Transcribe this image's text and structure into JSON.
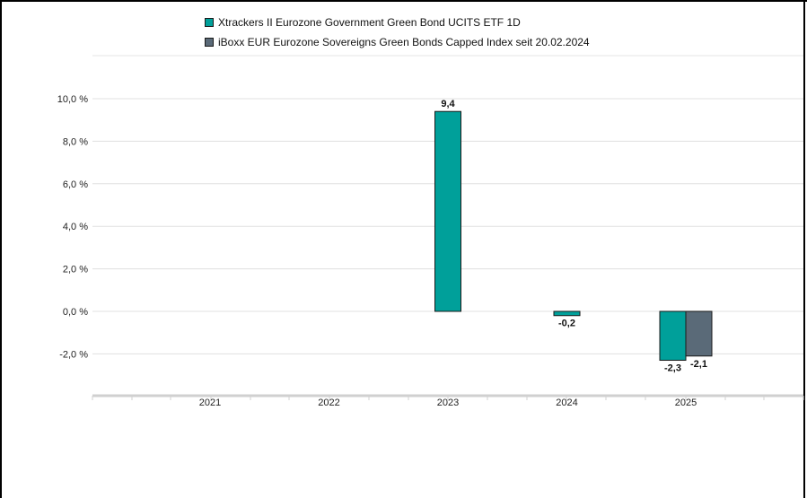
{
  "chart_data": {
    "type": "bar",
    "categories": [
      "2021",
      "2022",
      "2023",
      "2024",
      "2025"
    ],
    "series": [
      {
        "name": "Xtrackers II Eurozone Government Green Bond UCITS ETF 1D",
        "color": "#00a09a",
        "values": [
          null,
          null,
          9.4,
          -0.2,
          -2.3
        ],
        "labels": [
          "",
          "",
          "9,4",
          "-0,2",
          "-2,3"
        ]
      },
      {
        "name": "iBoxx EUR Eurozone Sovereigns Green Bonds Capped Index seit 20.02.2024",
        "color": "#5a6a78",
        "values": [
          null,
          null,
          null,
          null,
          -2.1
        ],
        "labels": [
          "",
          "",
          "",
          "",
          "-2,1"
        ]
      }
    ],
    "yticks": [
      10,
      8,
      6,
      4,
      2,
      0,
      -2
    ],
    "ytick_labels": [
      "10,0 %",
      "8,0 %",
      "6,0 %",
      "4,0 %",
      "2,0 %",
      "0,0 %",
      "-2,0 %"
    ],
    "ylim": [
      -3.9,
      10.4
    ],
    "grid": true,
    "legend_position": "top"
  }
}
